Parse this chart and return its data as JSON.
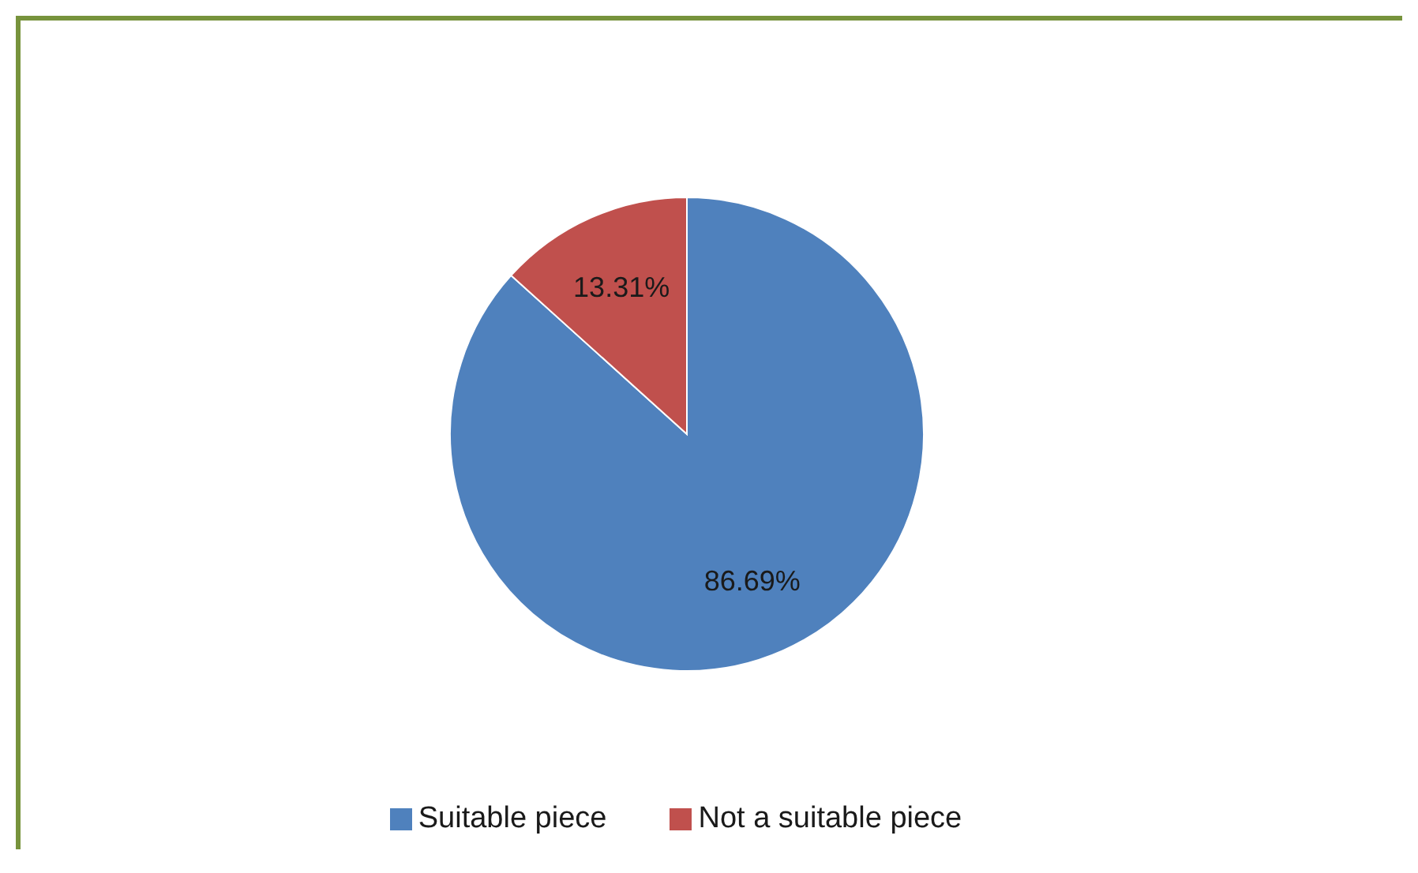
{
  "chart_data": {
    "type": "pie",
    "categories": [
      "Suitable piece",
      "Not a suitable piece"
    ],
    "values": [
      86.69,
      13.31
    ],
    "colors": [
      "#4f81bd",
      "#c0504d"
    ],
    "value_labels": [
      "86.69%",
      "13.31%"
    ],
    "legend": "bottom"
  }
}
